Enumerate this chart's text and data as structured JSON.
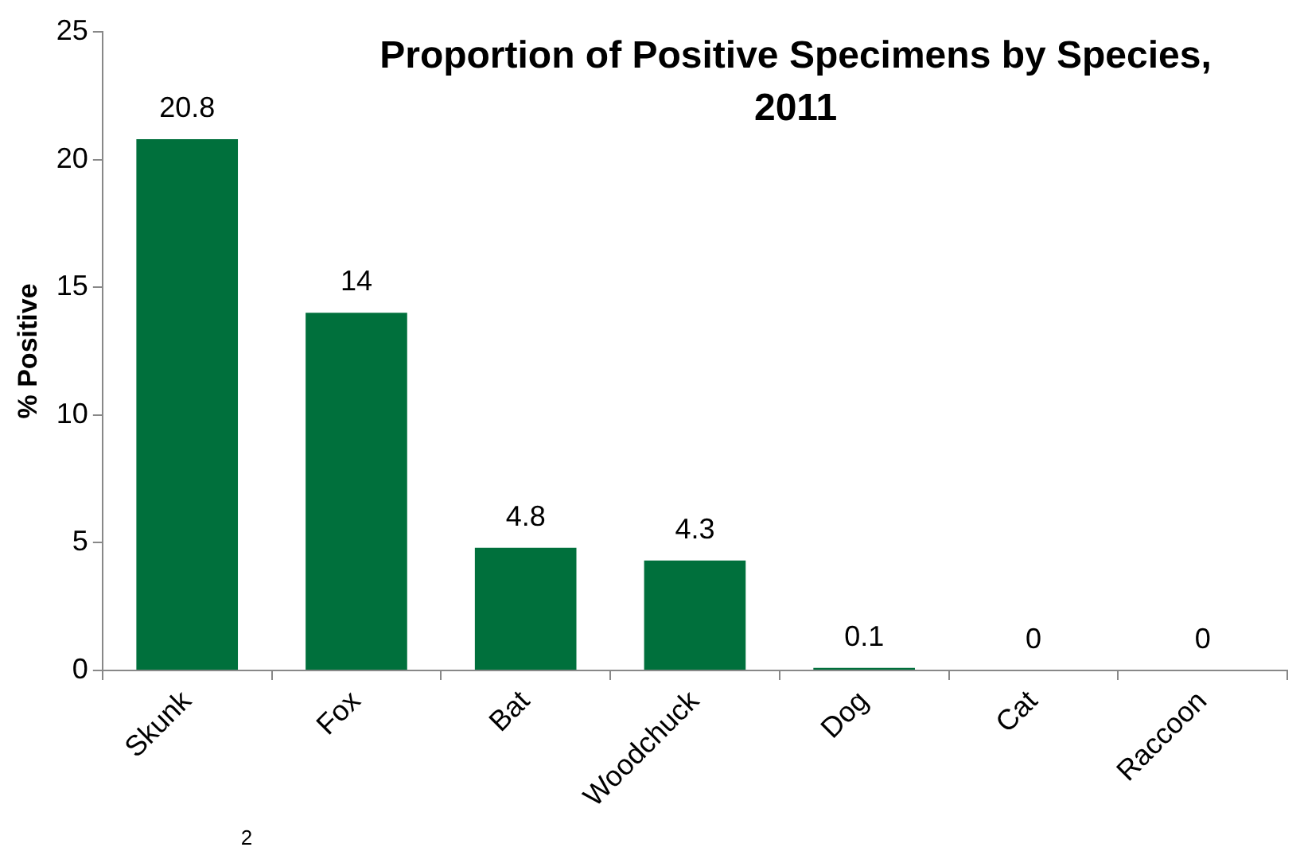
{
  "chart_data": {
    "type": "bar",
    "title": "Proportion of Positive Specimens by Species, 2011",
    "ylabel": "% Positive",
    "categories": [
      "Skunk",
      "Fox",
      "Bat",
      "Woodchuck",
      "Dog",
      "Cat",
      "Raccoon"
    ],
    "values": [
      20.8,
      14,
      4.8,
      4.3,
      0.1,
      0,
      0
    ],
    "color": "#00703c",
    "ylim": [
      0,
      25
    ],
    "yticks": [
      0,
      5,
      10,
      15,
      20,
      25
    ],
    "grid": false,
    "legend": false,
    "data_labels": true,
    "annotations": [
      "2"
    ]
  }
}
